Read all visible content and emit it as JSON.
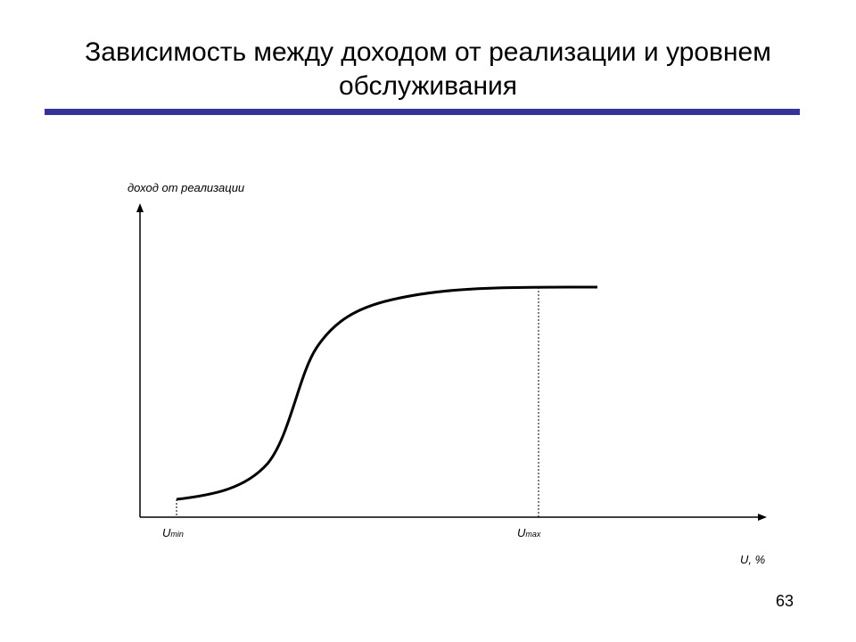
{
  "header": {
    "title": "Зависимость между доходом от реализации и уровнем обслуживания"
  },
  "diagram": {
    "y_axis_label": "доход от реализации",
    "x_axis_label": "U, %",
    "markers": [
      {
        "symbol": "U",
        "sub": "min"
      },
      {
        "symbol": "U",
        "sub": "max"
      }
    ]
  },
  "footer": {
    "page_number": "63"
  }
}
